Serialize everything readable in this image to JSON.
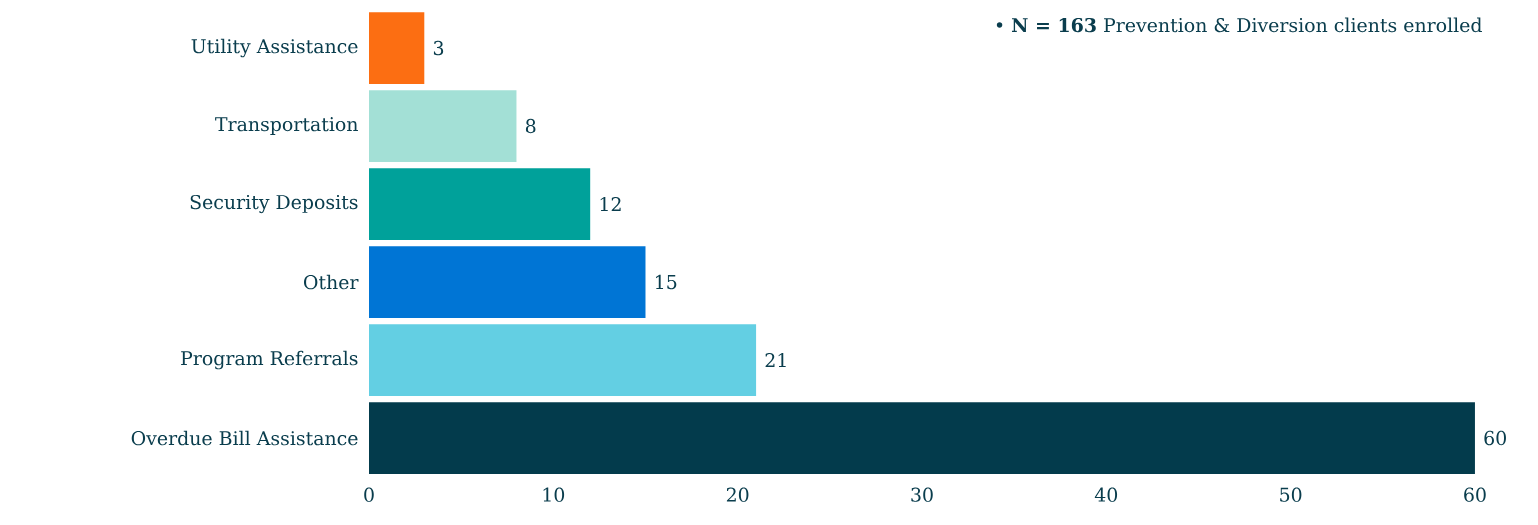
{
  "chart_data": {
    "type": "bar",
    "orientation": "horizontal",
    "categories": [
      "Utility Assistance",
      "Transportation",
      "Security Deposits",
      "Other",
      "Program Referrals",
      "Overdue Bill Assistance"
    ],
    "values": [
      3,
      8,
      12,
      15,
      21,
      60
    ],
    "colors": [
      "#fc6e12",
      "#a3e0d6",
      "#00a19a",
      "#0075d5",
      "#63cfe3",
      "#033b4c"
    ],
    "xlim": [
      0,
      60
    ],
    "xticks": [
      0,
      10,
      20,
      30,
      40,
      50,
      60
    ],
    "data_labels": true,
    "annotations": [
      "• **N = 163** Prevention & Diversion clients enrolled"
    ]
  }
}
